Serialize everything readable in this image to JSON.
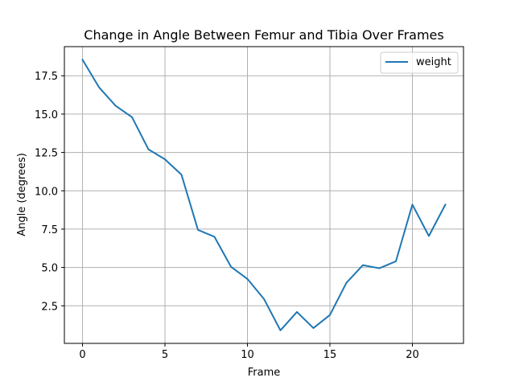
{
  "chart_data": {
    "type": "line",
    "title": "Change in Angle Between Femur and Tibia Over Frames",
    "xlabel": "Frame",
    "ylabel": "Angle (degrees)",
    "xlim": [
      -1.1,
      23.1
    ],
    "ylim": [
      0.05,
      19.4
    ],
    "xticks": [
      0,
      5,
      10,
      15,
      20
    ],
    "yticks": [
      2.5,
      5.0,
      7.5,
      10.0,
      12.5,
      15.0,
      17.5
    ],
    "xtick_labels": [
      "0",
      "5",
      "10",
      "15",
      "20"
    ],
    "ytick_labels": [
      "2.5",
      "5.0",
      "7.5",
      "10.0",
      "12.5",
      "15.0",
      "17.5"
    ],
    "grid": true,
    "legend_position": "top-right",
    "series": [
      {
        "name": "weight",
        "color": "#1f77b4",
        "x": [
          0,
          1,
          2,
          3,
          4,
          5,
          6,
          7,
          8,
          9,
          10,
          11,
          12,
          13,
          14,
          15,
          16,
          17,
          18,
          19,
          20,
          21,
          22
        ],
        "y": [
          18.55,
          16.75,
          15.55,
          14.8,
          12.7,
          12.05,
          11.05,
          7.45,
          7.0,
          5.05,
          4.25,
          2.95,
          0.9,
          2.1,
          1.05,
          1.9,
          4.0,
          5.15,
          4.95,
          5.4,
          9.1,
          7.05,
          9.1
        ]
      }
    ]
  }
}
